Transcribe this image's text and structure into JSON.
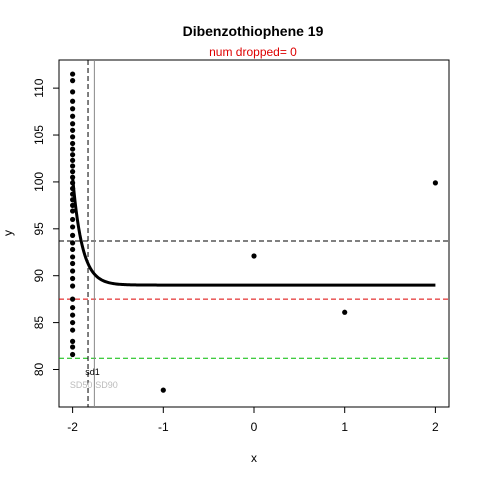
{
  "chart_data": {
    "type": "scatter",
    "title": "Dibenzothiophene 19",
    "subtitle": "num dropped= 0",
    "xlabel": "x",
    "ylabel": "y",
    "xlim": [
      -2.15,
      2.15
    ],
    "ylim": [
      76,
      113
    ],
    "x_ticks": [
      -2,
      -1,
      0,
      1,
      2
    ],
    "y_ticks": [
      80,
      85,
      90,
      95,
      100,
      105,
      110
    ],
    "points": [
      {
        "x": -2,
        "y": 111.5
      },
      {
        "x": -2,
        "y": 110.8
      },
      {
        "x": -2,
        "y": 109.6
      },
      {
        "x": -2,
        "y": 108.6
      },
      {
        "x": -2,
        "y": 107.8
      },
      {
        "x": -2,
        "y": 107.0
      },
      {
        "x": -2,
        "y": 106.2
      },
      {
        "x": -2,
        "y": 105.5
      },
      {
        "x": -2,
        "y": 104.8
      },
      {
        "x": -2,
        "y": 104.1
      },
      {
        "x": -2,
        "y": 103.5
      },
      {
        "x": -2,
        "y": 102.9
      },
      {
        "x": -2,
        "y": 102.3
      },
      {
        "x": -2,
        "y": 101.7
      },
      {
        "x": -2,
        "y": 101.1
      },
      {
        "x": -2,
        "y": 100.5
      },
      {
        "x": -2,
        "y": 99.9
      },
      {
        "x": -2,
        "y": 99.3
      },
      {
        "x": -2,
        "y": 98.7
      },
      {
        "x": -2,
        "y": 98.1
      },
      {
        "x": -2,
        "y": 97.5
      },
      {
        "x": -2,
        "y": 96.9
      },
      {
        "x": -2,
        "y": 96.0
      },
      {
        "x": -2,
        "y": 95.2
      },
      {
        "x": -2,
        "y": 94.3
      },
      {
        "x": -2,
        "y": 93.5
      },
      {
        "x": -2,
        "y": 92.8
      },
      {
        "x": -2,
        "y": 92.0
      },
      {
        "x": -2,
        "y": 91.3
      },
      {
        "x": -2,
        "y": 90.5
      },
      {
        "x": -2,
        "y": 89.7
      },
      {
        "x": -2,
        "y": 88.9
      },
      {
        "x": -2,
        "y": 87.5
      },
      {
        "x": -2,
        "y": 86.6
      },
      {
        "x": -2,
        "y": 85.8
      },
      {
        "x": -2,
        "y": 85.0
      },
      {
        "x": -2,
        "y": 84.2
      },
      {
        "x": -2,
        "y": 83.0
      },
      {
        "x": -2,
        "y": 82.4
      },
      {
        "x": -2,
        "y": 81.6
      },
      {
        "x": -1,
        "y": 77.8
      },
      {
        "x": 0,
        "y": 92.1
      },
      {
        "x": 1,
        "y": 86.1
      },
      {
        "x": 2,
        "y": 99.9
      }
    ],
    "fit_curve": {
      "color": "#000000",
      "asymptote": 89.0,
      "start_x": -2.0,
      "start_y": 100.5,
      "end_x": 2.0,
      "decay": 9.5
    },
    "hlines": [
      {
        "y": 93.7,
        "color": "#000000",
        "dash": "dashed"
      },
      {
        "y": 87.5,
        "color": "#dd0000",
        "dash": "dashed"
      },
      {
        "y": 81.2,
        "color": "#00bb00",
        "dash": "dashed"
      }
    ],
    "vlines": [
      {
        "x": -1.83,
        "color": "#000000",
        "dash": "dashed"
      },
      {
        "x": -1.76,
        "color": "#888888",
        "dash": "solid"
      }
    ],
    "annotations": [
      {
        "text": "sd1",
        "x": -1.86,
        "y": 79.4,
        "color": "#000000"
      },
      {
        "text": "SD50",
        "x": -2.03,
        "y": 78.0,
        "color": "#bbbbbb"
      },
      {
        "text": "SD90",
        "x": -1.75,
        "y": 78.0,
        "color": "#bbbbbb"
      }
    ],
    "subtitle_color": "#dd0000",
    "grid": false
  }
}
